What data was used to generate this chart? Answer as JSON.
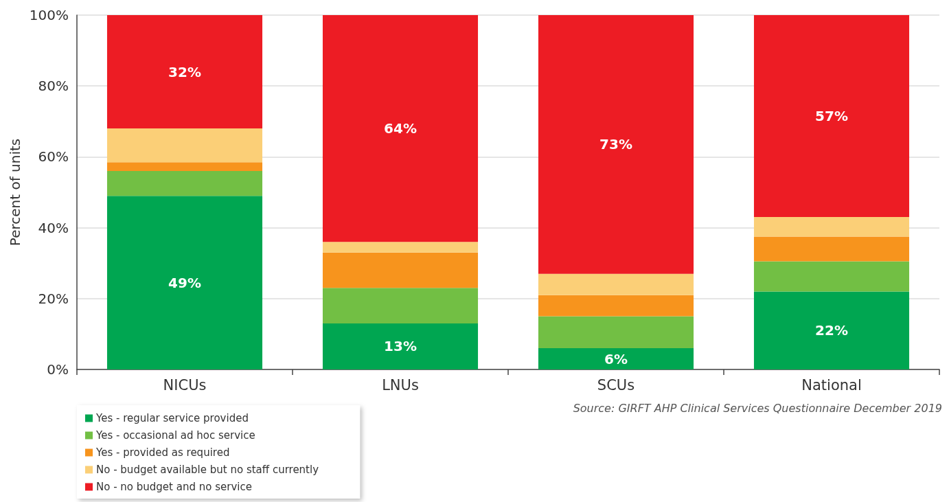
{
  "chart_data": {
    "type": "bar",
    "stacked": true,
    "ylabel": "Percent of units",
    "categories": [
      "NICUs",
      "LNUs",
      "SCUs",
      "National"
    ],
    "series": [
      {
        "name": "Yes - regular service provided",
        "color": "#00a651",
        "values": [
          49,
          13,
          6,
          22
        ],
        "value_labels": [
          "49%",
          "13%",
          "6%",
          "22%"
        ]
      },
      {
        "name": "Yes - occasional ad hoc service",
        "color": "#72bf44",
        "values": [
          7,
          10,
          9,
          8.5
        ]
      },
      {
        "name": "Yes - provided as required",
        "color": "#f7941d",
        "values": [
          2.5,
          10,
          6,
          7
        ]
      },
      {
        "name": "No - budget available but no staff currently",
        "color": "#fbcf77",
        "values": [
          9.5,
          3,
          6,
          5.5
        ]
      },
      {
        "name": "No - no budget and no service",
        "color": "#ed1c24",
        "values": [
          32,
          64,
          73,
          57
        ],
        "value_labels": [
          "32%",
          "64%",
          "73%",
          "57%"
        ]
      }
    ],
    "ylim": [
      0,
      100
    ],
    "yticks": [
      {
        "value": 0,
        "label": "0%"
      },
      {
        "value": 20,
        "label": "20%"
      },
      {
        "value": 40,
        "label": "40%"
      },
      {
        "value": 60,
        "label": "60%"
      },
      {
        "value": 80,
        "label": "80%"
      },
      {
        "value": 100,
        "label": "100%"
      }
    ],
    "grid": "y",
    "legend": "bottom left",
    "annotations": [
      "Source: GIRFT AHP Clinical Services Questionnaire December 2019"
    ]
  }
}
